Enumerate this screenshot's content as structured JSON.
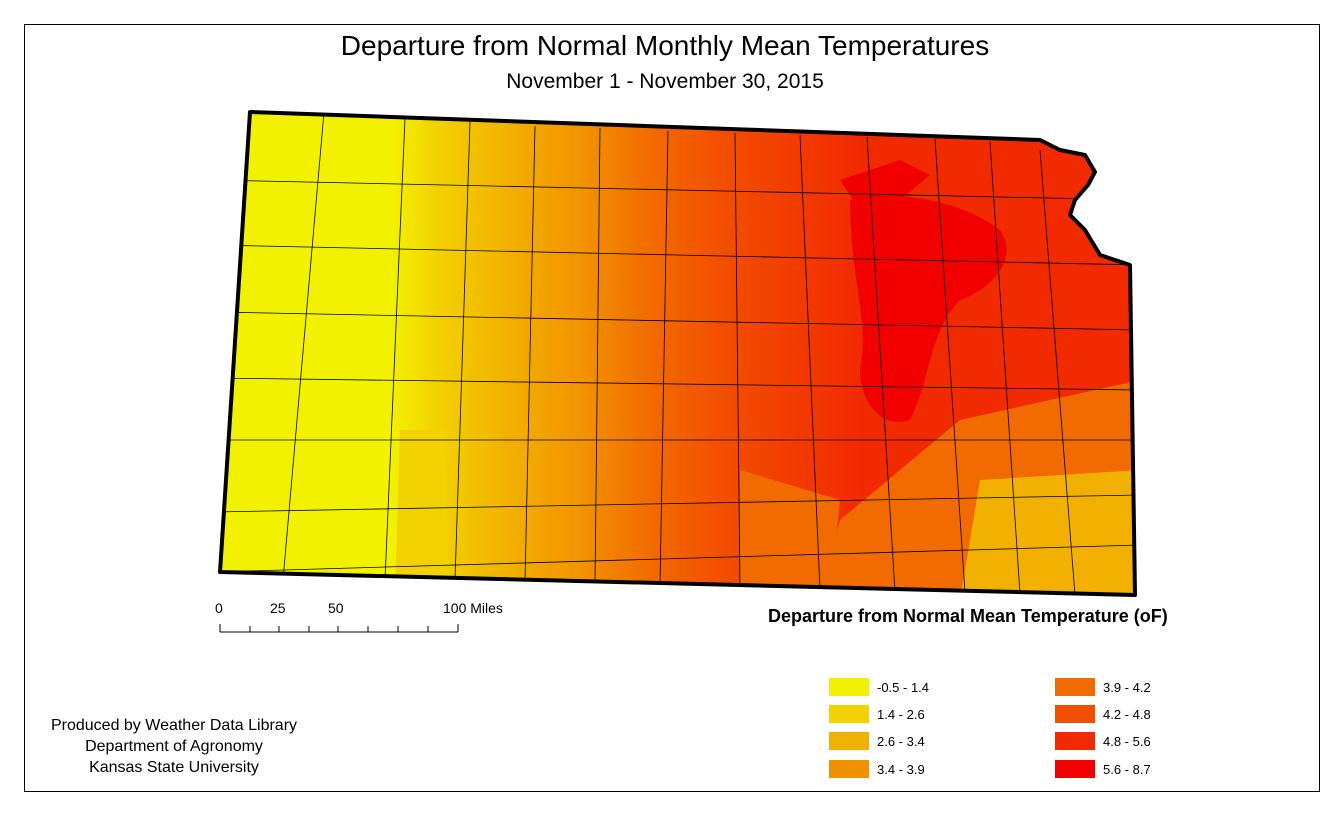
{
  "title": "Departure from Normal Monthly Mean Temperatures",
  "subtitle": "November 1 - November 30, 2015",
  "scale_bar": {
    "labels": [
      "0",
      "25",
      "50",
      "100 Miles"
    ]
  },
  "legend": {
    "title": "Departure from Normal Mean Temperature (oF)",
    "items": [
      {
        "label": "-0.5 - 1.4",
        "color": "#f2f200"
      },
      {
        "label": "1.4 - 2.6",
        "color": "#f2d200"
      },
      {
        "label": "2.6 - 3.4",
        "color": "#f2b000"
      },
      {
        "label": "3.4 - 3.9",
        "color": "#f29100"
      },
      {
        "label": "3.9 - 4.2",
        "color": "#f26b00"
      },
      {
        "label": "4.2 - 4.8",
        "color": "#f24e00"
      },
      {
        "label": "4.8 - 5.6",
        "color": "#f22a00"
      },
      {
        "label": "5.6 - 8.7",
        "color": "#f20000"
      }
    ]
  },
  "credits": {
    "line1": "Produced by Weather Data Library",
    "line2": "Department of Agronomy",
    "line3": "Kansas State University"
  }
}
